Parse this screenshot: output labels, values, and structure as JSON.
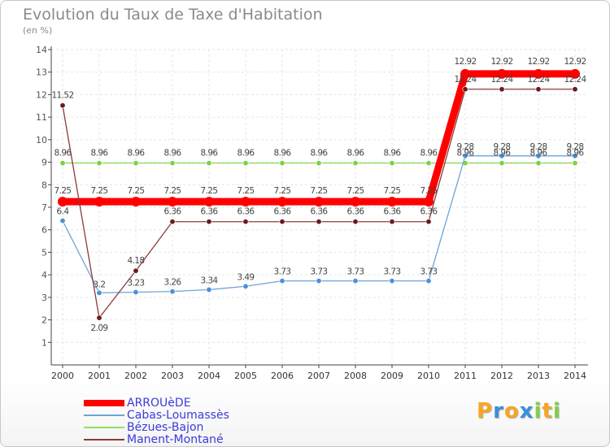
{
  "chart_data": {
    "type": "line",
    "title": "Evolution du Taux de Taxe d'Habitation",
    "ylabel": "(en %)",
    "xlabel": "",
    "ylim": [
      0,
      14
    ],
    "yticks": [
      1,
      2,
      3,
      4,
      5,
      6,
      7,
      8,
      9,
      10,
      11,
      12,
      13,
      14
    ],
    "categories": [
      "2000",
      "2001",
      "2002",
      "2003",
      "2004",
      "2005",
      "2006",
      "2007",
      "2008",
      "2009",
      "2010",
      "2011",
      "2012",
      "2013",
      "2014"
    ],
    "series": [
      {
        "name": "ARROUèDE",
        "color": "#ff0000",
        "values": [
          7.25,
          7.25,
          7.25,
          7.25,
          7.25,
          7.25,
          7.25,
          7.25,
          7.25,
          7.25,
          7.25,
          12.92,
          12.92,
          12.92,
          12.92
        ],
        "labels": [
          "7.25",
          "7.25",
          "7.25",
          "7.25",
          "7.25",
          "7.25",
          "7.25",
          "7.25",
          "7.25",
          "7.25",
          "7.25",
          "12.92",
          "12.92",
          "12.92",
          "12.92"
        ]
      },
      {
        "name": "Cabas-Loumassès",
        "color": "#6fa3d6",
        "marker": "#4a90d9",
        "values": [
          6.4,
          3.2,
          3.23,
          3.26,
          3.34,
          3.49,
          3.73,
          3.73,
          3.73,
          3.73,
          3.73,
          9.28,
          9.28,
          9.28,
          9.28
        ],
        "labels": [
          "6.4",
          "3.2",
          "3.23",
          "3.26",
          "3.34",
          "3.49",
          "3.73",
          "3.73",
          "3.73",
          "3.73",
          "3.73",
          "9.28",
          "9.28",
          "9.28",
          "9.28"
        ]
      },
      {
        "name": "Bézues-Bajon",
        "color": "#90e060",
        "marker": "#7ed04a",
        "values": [
          8.96,
          8.96,
          8.96,
          8.96,
          8.96,
          8.96,
          8.96,
          8.96,
          8.96,
          8.96,
          8.96,
          8.96,
          8.96,
          8.96,
          8.96
        ],
        "labels": [
          "8.96",
          "8.96",
          "8.96",
          "8.96",
          "8.96",
          "8.96",
          "8.96",
          "8.96",
          "8.96",
          "8.96",
          "8.96",
          "8.96",
          "8.96",
          "8.96",
          "8.96"
        ]
      },
      {
        "name": "Manent-Montané",
        "color": "#8b3a3a",
        "marker": "#6b1a1a",
        "values": [
          11.52,
          2.09,
          4.18,
          6.36,
          6.36,
          6.36,
          6.36,
          6.36,
          6.36,
          6.36,
          6.36,
          12.24,
          12.24,
          12.24,
          12.24
        ],
        "labels": [
          "11.52",
          "2.09",
          "4.18",
          "6.36",
          "6.36",
          "6.36",
          "6.36",
          "6.36",
          "6.36",
          "6.36",
          "6.36",
          "12.24",
          "12.24",
          "12.24",
          "12.24"
        ]
      }
    ],
    "legend_position": "bottom-left",
    "grid": true
  },
  "branding": {
    "logo_letters": [
      "P",
      "r",
      "o",
      "x",
      "i",
      "t",
      "i"
    ],
    "logo_colors": [
      "#f5a623",
      "#3b8fd9",
      "#f5a623",
      "#3b8fd9",
      "#7ed04a",
      "#f5a623",
      "#7ed04a"
    ]
  }
}
